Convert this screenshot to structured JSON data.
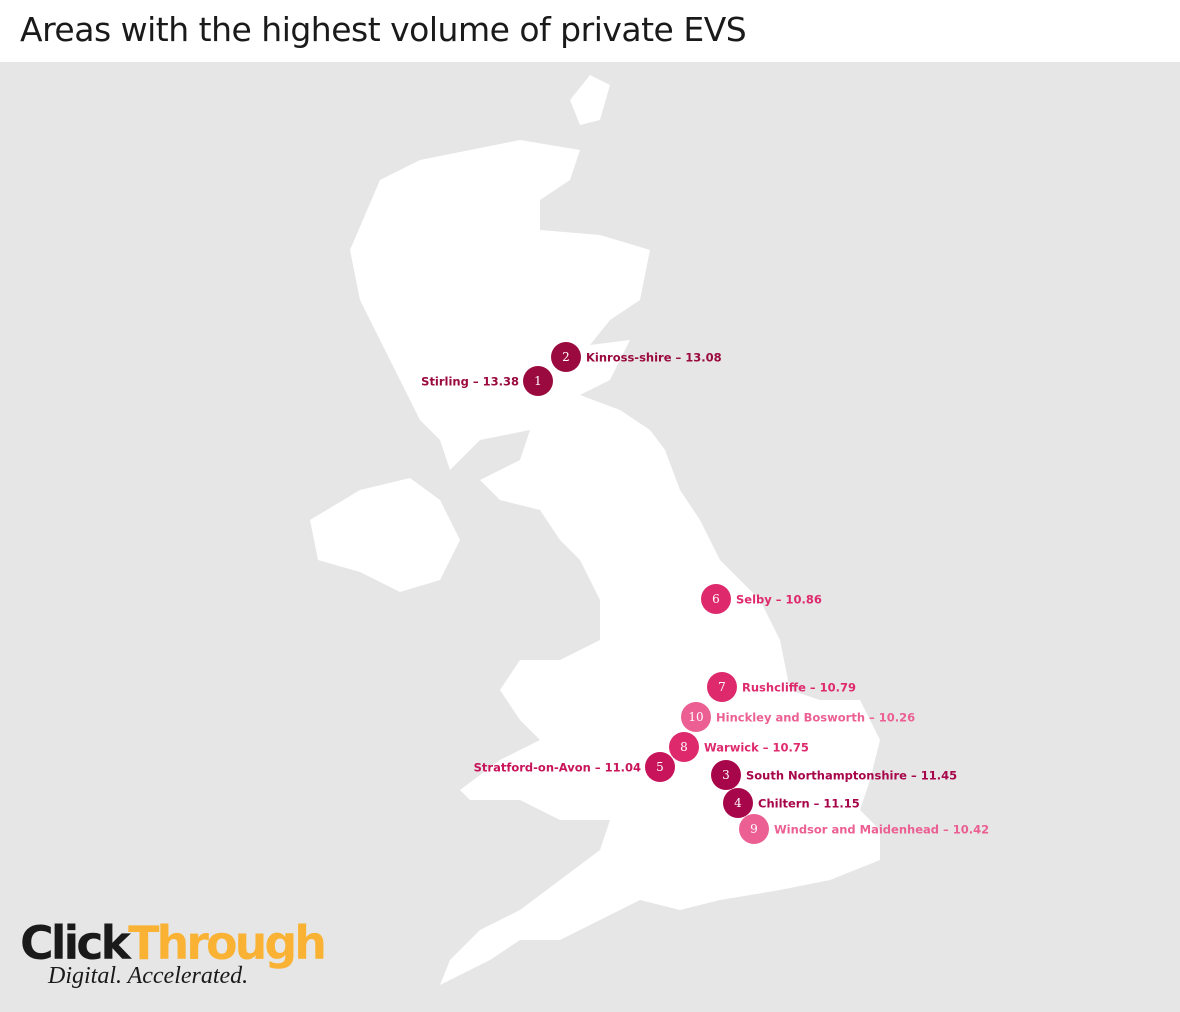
{
  "header": {
    "title": "Areas with the highest volume of private EVS"
  },
  "markers": [
    {
      "rank": "1",
      "label": "Stirling – 13.38",
      "color": "#9b0a3e"
    },
    {
      "rank": "2",
      "label": "Kinross-shire – 13.08",
      "color": "#9b0a3e"
    },
    {
      "rank": "3",
      "label": "South Northamptonshire – 11.45",
      "color": "#a8064a"
    },
    {
      "rank": "4",
      "label": "Chiltern – 11.15",
      "color": "#a8064a"
    },
    {
      "rank": "5",
      "label": "Stratford-on-Avon – 11.04",
      "color": "#c8145a"
    },
    {
      "rank": "6",
      "label": "Selby – 10.86",
      "color": "#de2a6c"
    },
    {
      "rank": "7",
      "label": "Rushcliffe – 10.79",
      "color": "#de2a6c"
    },
    {
      "rank": "8",
      "label": "Warwick – 10.75",
      "color": "#de2a6c"
    },
    {
      "rank": "9",
      "label": "Windsor and Maidenhead – 10.42",
      "color": "#ec5f93"
    },
    {
      "rank": "10",
      "label": "Hinckley and Bosworth – 10.26",
      "color": "#ec5f93"
    }
  ],
  "logo": {
    "part1": "Click",
    "part2": "Through",
    "tagline": "Digital. Accelerated."
  }
}
